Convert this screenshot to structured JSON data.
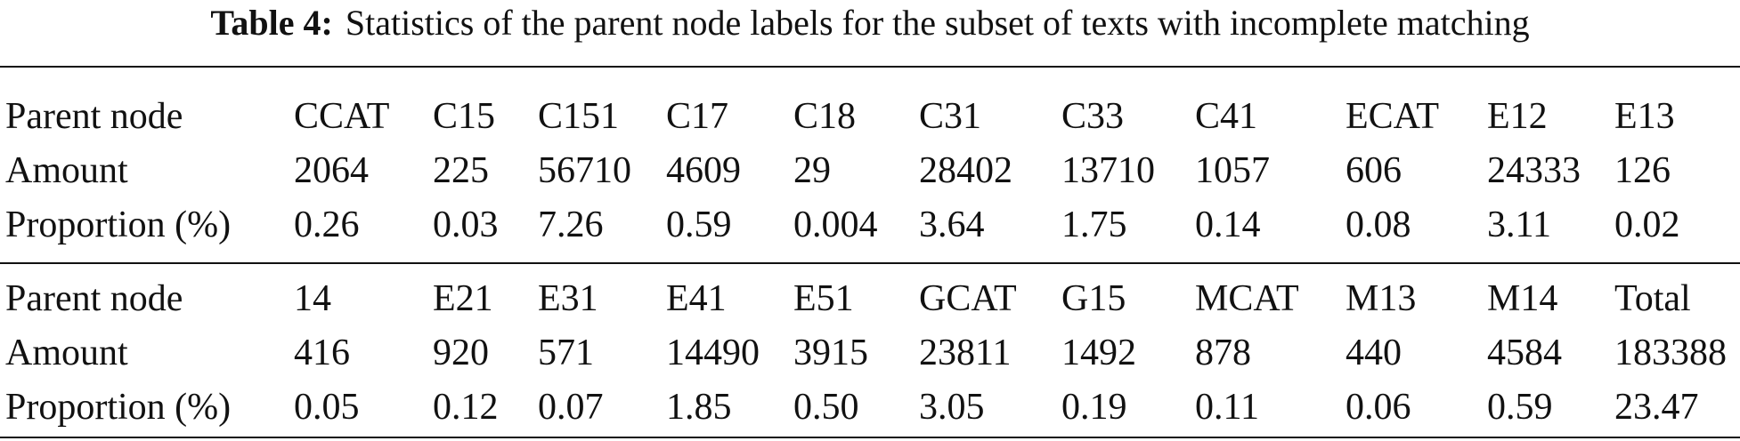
{
  "table": {
    "caption": {
      "label": "Table 4:",
      "text": "Statistics of the parent node labels for the subset of texts with incomplete matching"
    },
    "blocks": [
      {
        "rows": [
          [
            "Parent node",
            "CCAT",
            "C15",
            "C151",
            "C17",
            "C18",
            "C31",
            "C33",
            "C41",
            "ECAT",
            "E12",
            "E13"
          ],
          [
            "Amount",
            "2064",
            "225",
            "56710",
            "4609",
            "29",
            "28402",
            "13710",
            "1057",
            "606",
            "24333",
            "126"
          ],
          [
            "Proportion (%)",
            "0.26",
            "0.03",
            "7.26",
            "0.59",
            "0.004",
            "3.64",
            "1.75",
            "0.14",
            "0.08",
            "3.11",
            "0.02"
          ]
        ]
      },
      {
        "rows": [
          [
            "Parent node",
            "14",
            "E21",
            "E31",
            "E41",
            "E51",
            "GCAT",
            "G15",
            "MCAT",
            "M13",
            "M14",
            "Total"
          ],
          [
            "Amount",
            "416",
            "920",
            "571",
            "14490",
            "3915",
            "23811",
            "1492",
            "878",
            "440",
            "4584",
            "183388"
          ],
          [
            "Proportion (%)",
            "0.05",
            "0.12",
            "0.07",
            "1.85",
            "0.50",
            "3.05",
            "0.19",
            "0.11",
            "0.06",
            "0.59",
            "23.47"
          ]
        ]
      }
    ]
  }
}
